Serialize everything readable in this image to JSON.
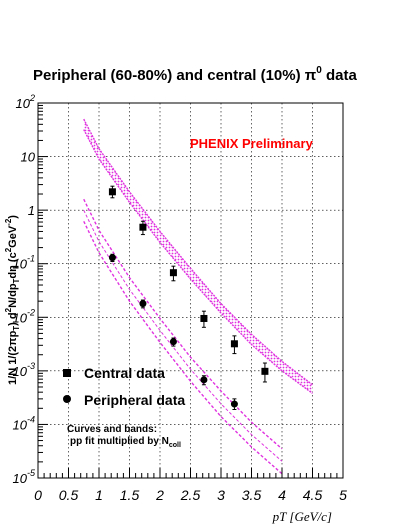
{
  "chart_data": {
    "type": "scatter",
    "title": "Peripheral (60-80%) and central (10%) π",
    "title_sup": "0",
    "title_tail": " data",
    "ylabel": "1/N 1/(2πp_T) d²N/dp_Tdy (c²GeV⁻²)",
    "ylabel_parts": [
      "1/N 1/(2πp",
      "T",
      ") d",
      "2",
      "N/dp",
      "T",
      "dη  (c",
      "2",
      "GeV",
      "-2",
      ")"
    ],
    "xlabel": "pT [GeV/c]",
    "x_ticks": [
      "0",
      "0.5",
      "1",
      "1.5",
      "2",
      "2.5",
      "3",
      "3.5",
      "4",
      "4.5",
      "5"
    ],
    "y_ticks": [
      {
        "base": "10",
        "exp": "-5"
      },
      {
        "base": "10",
        "exp": "-4"
      },
      {
        "base": "10",
        "exp": "-3"
      },
      {
        "base": "10",
        "exp": "-2"
      },
      {
        "base": "10",
        "exp": "-1"
      },
      {
        "base": "1",
        "exp": ""
      },
      {
        "base": "10",
        "exp": ""
      },
      {
        "base": "10",
        "exp": "2"
      }
    ],
    "xlim": [
      0,
      5
    ],
    "ylim": [
      1e-05,
      100
    ],
    "yscale": "log",
    "grid": true,
    "annotation": "PHENIX Preliminary",
    "annotation_color": "#ff0000",
    "band_color": "#e033e0",
    "legend_position": "bottom-left",
    "series": [
      {
        "name": "Central data",
        "marker": "square",
        "x": [
          1.22,
          1.72,
          2.22,
          2.72,
          3.22,
          3.72
        ],
        "y": [
          2.2,
          0.48,
          0.068,
          0.0095,
          0.0032,
          0.00098
        ],
        "yerr_low": [
          1.7,
          0.35,
          0.048,
          0.0065,
          0.0021,
          0.00062
        ],
        "yerr_high": [
          2.8,
          0.62,
          0.09,
          0.013,
          0.0045,
          0.0014
        ]
      },
      {
        "name": "Peripheral data",
        "marker": "circle",
        "x": [
          1.22,
          1.72,
          2.22,
          2.72,
          3.22
        ],
        "y": [
          0.13,
          0.018,
          0.0035,
          0.00068,
          0.00024
        ],
        "yerr_low": [
          0.11,
          0.015,
          0.0029,
          0.00055,
          0.00019
        ],
        "yerr_high": [
          0.15,
          0.021,
          0.0041,
          0.00081,
          0.0003
        ]
      }
    ],
    "bands": [
      {
        "role": "central-band",
        "x": [
          0.75,
          1.0,
          1.5,
          2.0,
          2.5,
          3.0,
          3.5,
          4.0,
          4.5
        ],
        "upper": [
          50,
          14,
          2.2,
          0.4,
          0.082,
          0.018,
          0.0048,
          0.0015,
          0.00055
        ],
        "lower": [
          32,
          9,
          1.4,
          0.25,
          0.052,
          0.012,
          0.0031,
          0.001,
          0.00038
        ]
      },
      {
        "role": "peripheral-band",
        "x": [
          0.75,
          1.0,
          1.5,
          2.0,
          2.5,
          3.0,
          3.5,
          4.0
        ],
        "upper": [
          1.6,
          0.42,
          0.055,
          0.0095,
          0.0018,
          0.00042,
          0.00011,
          3.5e-05
        ],
        "lower": [
          0.62,
          0.16,
          0.02,
          0.0034,
          0.00064,
          0.00014,
          3.8e-05,
          1.2e-05
        ]
      }
    ],
    "band_note_line1": "Curves and bands:",
    "band_note_line2": "pp fit multiplied by N",
    "band_note_sub": "coll"
  }
}
